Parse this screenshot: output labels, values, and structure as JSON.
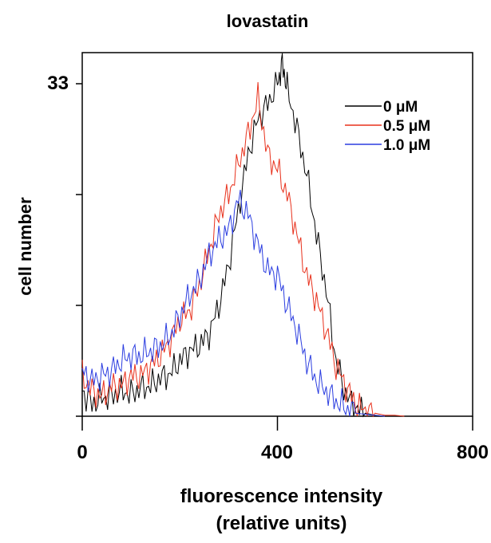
{
  "chart_data": {
    "type": "line",
    "title": "lovastatin",
    "xlabel_line1": "fluorescence intensity",
    "xlabel_line2": "(relative units)",
    "ylabel": "cell number",
    "xlim": [
      0,
      800
    ],
    "ylim": [
      0,
      33
    ],
    "x_ticks": [
      "0",
      "400",
      "800"
    ],
    "y_tick_label": "33",
    "legend_position": "top-right",
    "series": [
      {
        "name": "0 μM",
        "color": "#000000",
        "x": [
          0,
          20,
          40,
          60,
          80,
          100,
          120,
          140,
          160,
          180,
          200,
          220,
          240,
          260,
          280,
          300,
          320,
          340,
          360,
          380,
          400,
          410,
          420,
          440,
          460,
          480,
          500,
          520,
          540,
          560,
          580,
          600,
          620
        ],
        "y": [
          2.5,
          1.2,
          1.8,
          2.0,
          2.5,
          2.2,
          2.8,
          3.0,
          3.8,
          4.2,
          5.5,
          6.5,
          7.0,
          8.2,
          11.0,
          15.0,
          20.5,
          26.0,
          29.5,
          31.0,
          33.0,
          35.0,
          32.5,
          28.5,
          24.0,
          18.0,
          12.5,
          5.5,
          2.2,
          0.8,
          0.3,
          0.1,
          0
        ]
      },
      {
        "name": "0.5 μM",
        "color": "#e8311c",
        "x": [
          0,
          20,
          40,
          60,
          80,
          100,
          120,
          140,
          160,
          180,
          200,
          220,
          240,
          260,
          280,
          300,
          320,
          340,
          360,
          380,
          400,
          420,
          440,
          460,
          480,
          500,
          520,
          540,
          560,
          580,
          600,
          620,
          640,
          660
        ],
        "y": [
          4.0,
          2.5,
          2.0,
          3.0,
          3.0,
          4.0,
          4.0,
          5.0,
          6.0,
          7.5,
          9.5,
          10.5,
          13.0,
          16.5,
          20.0,
          22.0,
          25.0,
          28.0,
          31.5,
          26.0,
          24.5,
          22.0,
          18.0,
          14.0,
          11.5,
          8.5,
          5.0,
          3.0,
          1.2,
          0.5,
          0.3,
          0.1,
          0.1,
          0
        ]
      },
      {
        "name": "1.0 μM",
        "color": "#2b3de0",
        "x": [
          0,
          20,
          40,
          60,
          80,
          100,
          120,
          140,
          160,
          180,
          200,
          220,
          240,
          260,
          280,
          300,
          320,
          340,
          360,
          380,
          400,
          420,
          440,
          460,
          480,
          500,
          520,
          540,
          560,
          580,
          600,
          620
        ],
        "y": [
          4.5,
          3.5,
          4.0,
          4.5,
          5.5,
          6.0,
          6.0,
          6.5,
          7.0,
          8.0,
          10.0,
          12.0,
          13.5,
          16.0,
          17.5,
          18.5,
          21.5,
          20.0,
          17.0,
          14.5,
          14.0,
          11.0,
          8.5,
          5.5,
          3.5,
          2.5,
          1.5,
          0.8,
          0.3,
          0.2,
          0.1,
          0
        ]
      }
    ]
  }
}
